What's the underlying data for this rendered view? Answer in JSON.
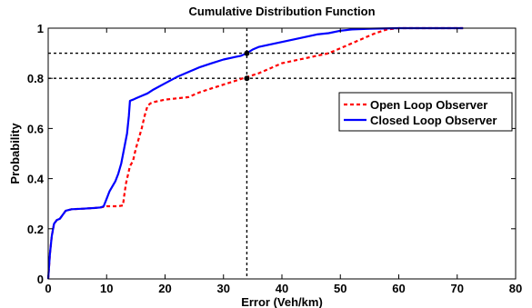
{
  "chart_data": {
    "type": "line",
    "title": "Cumulative Distribution Function",
    "xlabel": "Error (Veh/km)",
    "ylabel": "Probability",
    "xlim": [
      0,
      80
    ],
    "ylim": [
      0,
      1
    ],
    "xticks": [
      "0",
      "10",
      "20",
      "30",
      "40",
      "50",
      "60",
      "70",
      "80"
    ],
    "yticks": [
      "0",
      "0.2",
      "0.4",
      "0.6",
      "0.8",
      "1"
    ],
    "grid": false,
    "legend_position": "right",
    "reference_lines": {
      "vertical_x": 34,
      "horizontal_y": [
        0.8,
        0.9
      ]
    },
    "markers": [
      {
        "x": 34,
        "y": 0.9
      },
      {
        "x": 34,
        "y": 0.8
      }
    ],
    "series": [
      {
        "name": "Open Loop Observer",
        "color": "#ff0000",
        "style": "dashed",
        "x": [
          0,
          0.3,
          0.6,
          1,
          1.5,
          2,
          3,
          4,
          6,
          8,
          9.5,
          10,
          11,
          12,
          12.8,
          13,
          13.3,
          13.7,
          14,
          14.5,
          15,
          15.5,
          16,
          16.5,
          17,
          17.5,
          18,
          20,
          22,
          24,
          25,
          26,
          28,
          30,
          32,
          34,
          36,
          38,
          40,
          44,
          48,
          50,
          52,
          54,
          56,
          58,
          60,
          65,
          71
        ],
        "y": [
          0,
          0.1,
          0.17,
          0.22,
          0.235,
          0.24,
          0.272,
          0.278,
          0.28,
          0.283,
          0.287,
          0.29,
          0.29,
          0.29,
          0.293,
          0.33,
          0.38,
          0.42,
          0.45,
          0.47,
          0.52,
          0.56,
          0.6,
          0.65,
          0.69,
          0.7,
          0.705,
          0.715,
          0.72,
          0.725,
          0.735,
          0.745,
          0.76,
          0.775,
          0.79,
          0.805,
          0.82,
          0.84,
          0.86,
          0.88,
          0.9,
          0.92,
          0.94,
          0.96,
          0.98,
          0.995,
          1,
          1,
          1
        ]
      },
      {
        "name": "Closed Loop Observer",
        "color": "#0000ff",
        "style": "solid",
        "x": [
          0,
          0.3,
          0.6,
          1,
          1.5,
          2,
          3,
          4,
          6,
          8,
          9,
          9.5,
          10,
          10.5,
          11,
          11.5,
          12,
          12.5,
          13,
          13.5,
          13.8,
          14,
          14.5,
          15,
          16,
          17,
          18,
          20,
          22,
          24,
          26,
          28,
          30,
          32,
          33,
          34,
          35,
          36,
          38,
          40,
          42,
          44,
          46,
          48,
          50,
          52,
          55,
          60,
          65,
          71
        ],
        "y": [
          0,
          0.1,
          0.17,
          0.22,
          0.235,
          0.24,
          0.272,
          0.278,
          0.28,
          0.283,
          0.285,
          0.29,
          0.32,
          0.35,
          0.37,
          0.39,
          0.42,
          0.46,
          0.52,
          0.58,
          0.65,
          0.71,
          0.715,
          0.72,
          0.73,
          0.74,
          0.755,
          0.78,
          0.805,
          0.825,
          0.845,
          0.86,
          0.875,
          0.885,
          0.89,
          0.9,
          0.915,
          0.925,
          0.935,
          0.945,
          0.955,
          0.965,
          0.975,
          0.98,
          0.99,
          0.995,
          0.998,
          1,
          1,
          1
        ]
      }
    ]
  }
}
